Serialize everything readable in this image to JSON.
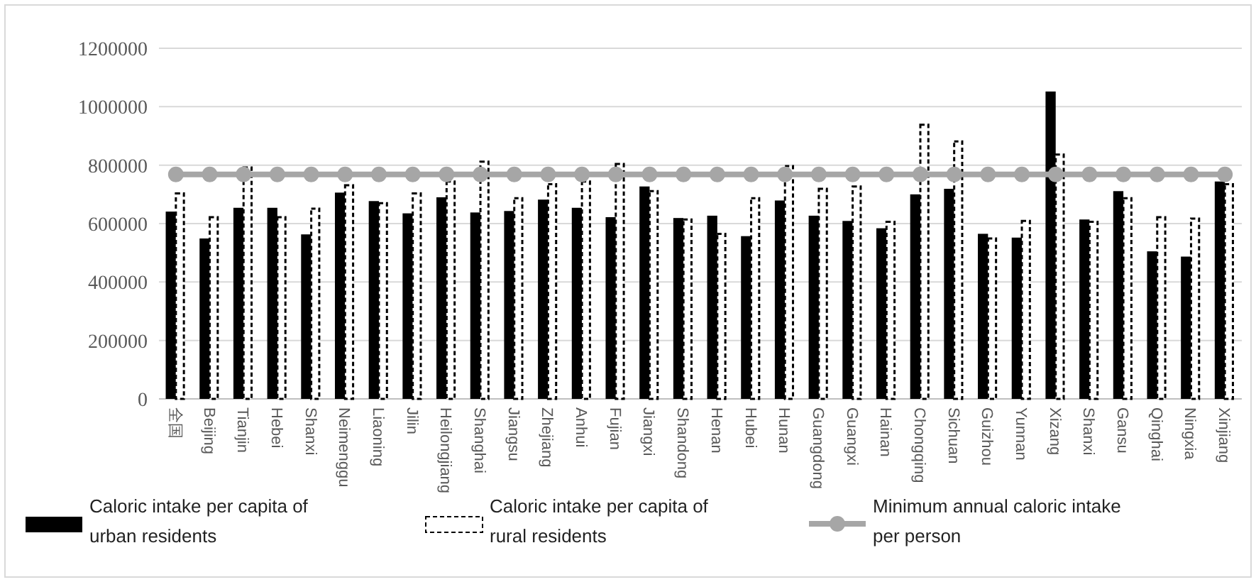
{
  "chart_data": {
    "type": "bar",
    "categories": [
      "全国",
      "Beijing",
      "Tianjin",
      "Hebei",
      "Shanxi",
      "Neimenggu",
      "Liaoning",
      "Jilin",
      "Heilongjiang",
      "Shanghai",
      "Jiangsu",
      "Zhejiang",
      "Anhui",
      "Fujian",
      "Jiangxi",
      "Shandong",
      "Henan",
      "Hubei",
      "Hunan",
      "Guangdong",
      "Guangxi",
      "Hainan",
      "Chongqing",
      "Sichuan",
      "Guizhou",
      "Yunnan",
      "Xizang",
      "Shanxi",
      "Gansu",
      "Qinghai",
      "Ningxia",
      "Xinjiang"
    ],
    "series": [
      {
        "name": "Caloric intake per capita of urban residents",
        "color": "#000000",
        "values": [
          641000,
          549000,
          654000,
          654000,
          563000,
          706000,
          677000,
          635000,
          690000,
          638000,
          643000,
          682000,
          654000,
          622000,
          727000,
          619000,
          627000,
          557000,
          679000,
          627000,
          609000,
          584000,
          700000,
          719000,
          565000,
          552000,
          1052000,
          614000,
          711000,
          505000,
          487000,
          744000
        ]
      },
      {
        "name": "Caloric intake per capita of rural residents",
        "color": "#ffffff",
        "line_style": "dashed",
        "values": [
          703000,
          622000,
          792000,
          622000,
          651000,
          731000,
          670000,
          703000,
          744000,
          812000,
          687000,
          735000,
          744000,
          804000,
          711000,
          614000,
          565000,
          687000,
          797000,
          719000,
          727000,
          606000,
          938000,
          881000,
          549000,
          609000,
          836000,
          606000,
          687000,
          622000,
          617000,
          735000
        ]
      },
      {
        "name": "Minimum annual caloric intake per person",
        "type": "line",
        "color": "#a6a6a6",
        "marker": "circle",
        "values": [
          768000,
          768000,
          768000,
          768000,
          768000,
          768000,
          768000,
          768000,
          768000,
          768000,
          768000,
          768000,
          768000,
          768000,
          768000,
          768000,
          768000,
          768000,
          768000,
          768000,
          768000,
          768000,
          768000,
          768000,
          768000,
          768000,
          768000,
          768000,
          768000,
          768000,
          768000,
          768000
        ]
      }
    ],
    "ylim": [
      0,
      1200000
    ],
    "yticks": [
      0,
      200000,
      400000,
      600000,
      800000,
      1000000,
      1200000
    ],
    "grid": "y",
    "legend": "bottom"
  }
}
